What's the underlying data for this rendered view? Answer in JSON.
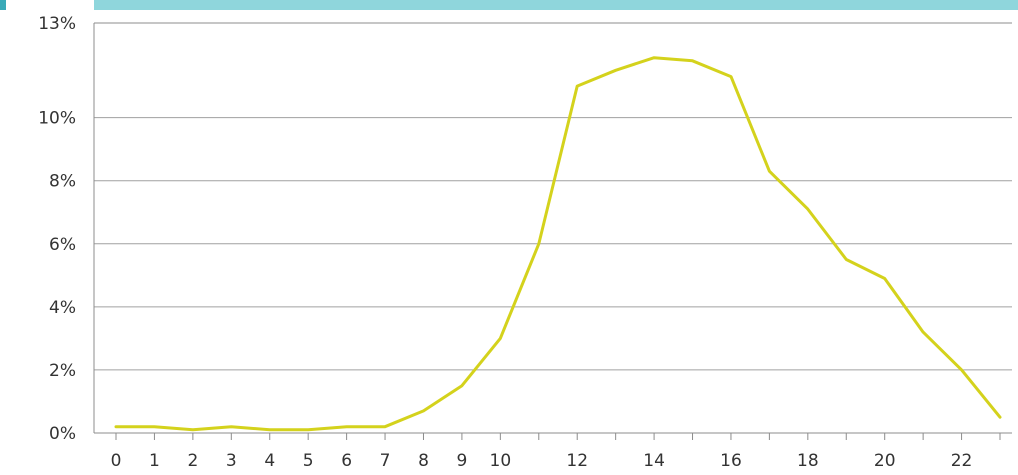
{
  "chart_data": {
    "type": "line",
    "title": "",
    "xlabel": "",
    "ylabel": "",
    "x": [
      0,
      1,
      2,
      3,
      4,
      5,
      6,
      7,
      8,
      9,
      10,
      11,
      12,
      13,
      14,
      15,
      16,
      17,
      18,
      19,
      20,
      21,
      22,
      23
    ],
    "series": [
      {
        "values": [
          0.2,
          0.2,
          0.1,
          0.2,
          0.1,
          0.1,
          0.2,
          0.2,
          0.7,
          1.5,
          3.0,
          6.0,
          11.0,
          11.5,
          11.9,
          11.8,
          11.3,
          8.3,
          7.1,
          5.5,
          4.9,
          3.2,
          2.0,
          0.5
        ]
      }
    ],
    "x_tick_labels": [
      "0",
      "1",
      "2",
      "3",
      "4",
      "5",
      "6",
      "7",
      "8",
      "9",
      "10",
      "12",
      "14",
      "16",
      "18",
      "20",
      "22"
    ],
    "x_tick_values": [
      0,
      1,
      2,
      3,
      4,
      5,
      6,
      7,
      8,
      9,
      10,
      12,
      14,
      16,
      18,
      20,
      22
    ],
    "y_ticks": [
      0,
      2,
      4,
      6,
      8,
      10,
      13
    ],
    "y_tick_labels": [
      "0%",
      "2%",
      "4%",
      "6%",
      "8%",
      "10%",
      "13%"
    ],
    "ylim": [
      0,
      13
    ],
    "xlim": [
      0,
      23
    ],
    "grid": true,
    "colors": {
      "line": "#d4d21c",
      "header_bar": "#8fd6dc",
      "header_accent": "#3aaab8",
      "grid": "#a0a0a0",
      "frame": "#8c8c8c"
    }
  }
}
